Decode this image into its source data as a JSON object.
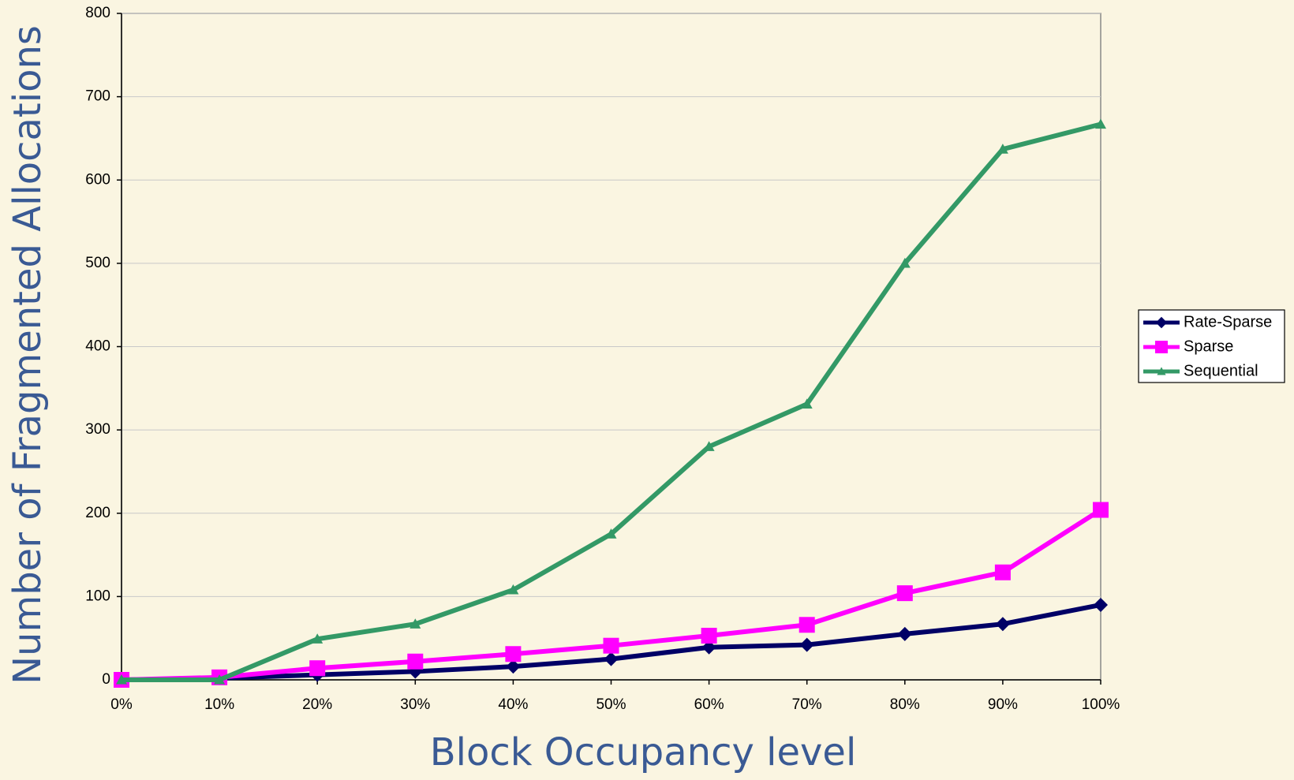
{
  "chart_data": {
    "type": "line",
    "x_label": "Block Occupancy level",
    "y_label": "Number of Fragmented Allocations",
    "categories": [
      "0%",
      "10%",
      "20%",
      "30%",
      "40%",
      "50%",
      "60%",
      "70%",
      "80%",
      "90%",
      "100%"
    ],
    "series": [
      {
        "name": "Rate-Sparse",
        "color": "#000066",
        "marker": "diamond",
        "values": [
          0,
          2,
          6,
          10,
          16,
          25,
          39,
          42,
          55,
          67,
          90
        ]
      },
      {
        "name": "Sparse",
        "color": "#ff00ff",
        "marker": "square",
        "values": [
          0,
          3,
          14,
          22,
          31,
          41,
          53,
          66,
          104,
          129,
          204
        ]
      },
      {
        "name": "Sequential",
        "color": "#339966",
        "marker": "triangle",
        "values": [
          0,
          0,
          49,
          67,
          108,
          175,
          280,
          331,
          500,
          637,
          667
        ]
      }
    ],
    "ylim": [
      0,
      800
    ],
    "yticks": [
      0,
      100,
      200,
      300,
      400,
      500,
      600,
      700,
      800
    ],
    "grid": true,
    "legend": "right"
  }
}
